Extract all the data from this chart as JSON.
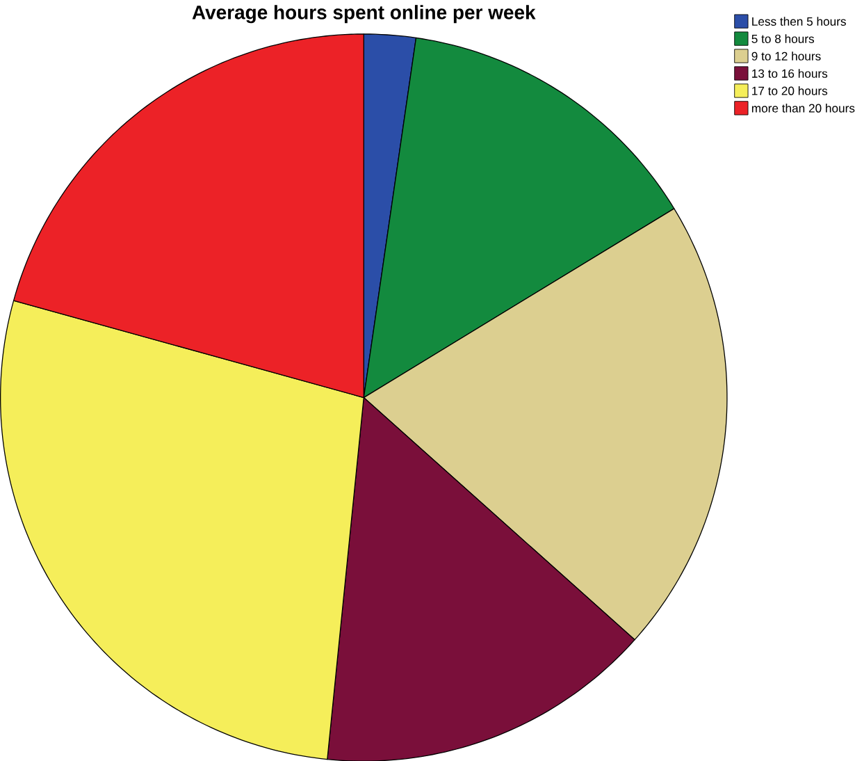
{
  "chart_data": {
    "type": "pie",
    "title": "Average hours spent online per week",
    "categories": [
      "Less then 5 hours",
      "5 to 8 hours",
      "9 to 12 hours",
      "13 to 16 hours",
      "17 to 20 hours",
      "more than 20 hours"
    ],
    "values": [
      2.3,
      14.0,
      20.3,
      15.0,
      27.7,
      20.7
    ],
    "colors": [
      "#2b4ea8",
      "#138a3e",
      "#dccf90",
      "#7a0f3a",
      "#f5ee5a",
      "#ec2227"
    ],
    "legend": "top right"
  }
}
